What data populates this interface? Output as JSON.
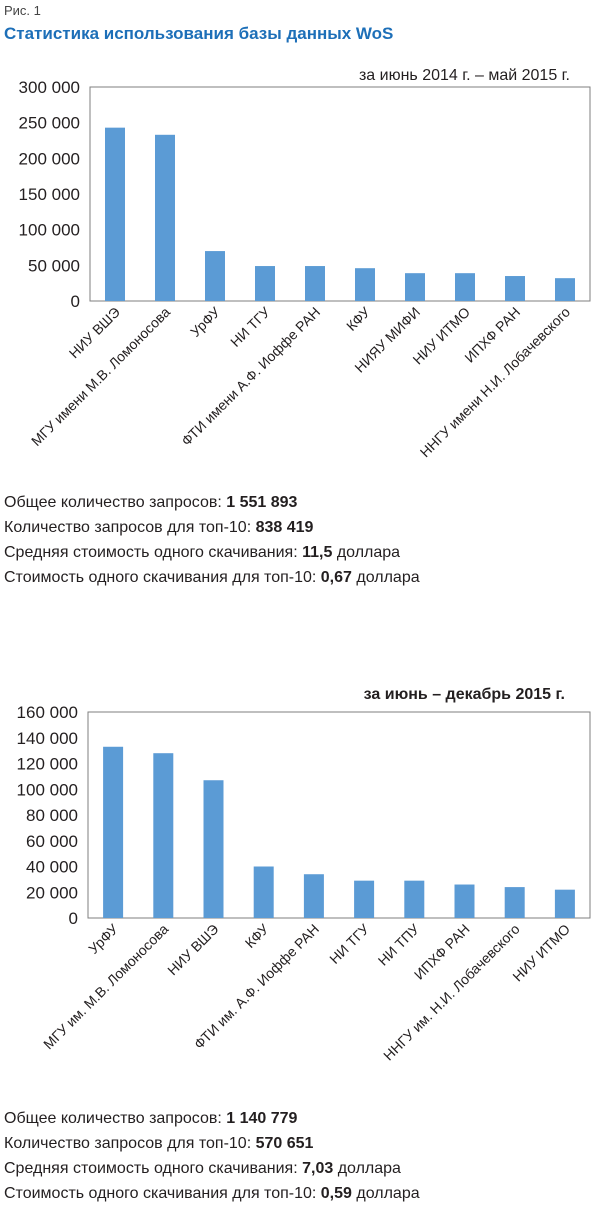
{
  "figure_label": "Рис. 1",
  "title": "Статистика использования базы данных WoS",
  "chart_data": [
    {
      "type": "bar",
      "subtitle": "за июнь 2014 г. – май 2015 г.",
      "ylim": [
        0,
        300000
      ],
      "yticks": [
        0,
        50000,
        100000,
        150000,
        200000,
        250000,
        300000
      ],
      "ytick_labels": [
        "0",
        "50 000",
        "100 000",
        "150 000",
        "200 000",
        "250 000",
        "300 000"
      ],
      "categories": [
        "НИУ ВШЭ",
        "МГУ имени М.В. Ломоносова",
        "УрФУ",
        "НИ ТГУ",
        "ФТИ имени А.Ф. Иоффе РАН",
        "КФУ",
        "НИЯУ МИФИ",
        "НИУ ИТМО",
        "ИПХФ РАН",
        "ННГУ имени Н.И. Лобачевского"
      ],
      "values": [
        243000,
        233000,
        70000,
        49000,
        49000,
        46000,
        39000,
        39000,
        35000,
        32000
      ],
      "color": "#5b9bd5",
      "grid": false
    },
    {
      "type": "bar",
      "subtitle": "за июнь – декабрь 2015 г.",
      "ylim": [
        0,
        160000
      ],
      "yticks": [
        0,
        20000,
        40000,
        60000,
        80000,
        100000,
        120000,
        140000,
        160000
      ],
      "ytick_labels": [
        "0",
        "20 000",
        "40 000",
        "60 000",
        "80 000",
        "100 000",
        "120 000",
        "140 000",
        "160 000"
      ],
      "categories": [
        "УрФУ",
        "МГУ им. М.В. Ломоносова",
        "НИУ ВШЭ",
        "КФУ",
        "ФТИ им. А.Ф. Иоффе РАН",
        "НИ ТГУ",
        "НИ ТПУ",
        "ИПХФ РАН",
        "ННГУ им. Н.И. Лобачевского",
        "НИУ ИТМО"
      ],
      "values": [
        133000,
        128000,
        107000,
        40000,
        34000,
        29000,
        29000,
        26000,
        24000,
        22000
      ],
      "color": "#5b9bd5",
      "grid": false
    }
  ],
  "stats": [
    [
      {
        "label": "Общее количество запросов: ",
        "value": "1 551 893",
        "suffix": ""
      },
      {
        "label": "Количество запросов для топ-10: ",
        "value": "838 419",
        "suffix": ""
      },
      {
        "label": "Средняя стоимость одного скачивания: ",
        "value": "11,5",
        "suffix": " доллара"
      },
      {
        "label": "Стоимость одного скачивания для топ-10: ",
        "value": "0,67",
        "suffix": " доллара"
      }
    ],
    [
      {
        "label": "Общее количество запросов: ",
        "value": "1 140 779",
        "suffix": ""
      },
      {
        "label": "Количество запросов для топ-10: ",
        "value": "570 651",
        "suffix": ""
      },
      {
        "label": "Средняя стоимость одного скачивания: ",
        "value": "7,03",
        "suffix": " доллара"
      },
      {
        "label": "Стоимость одного скачивания для топ-10: ",
        "value": "0,59",
        "suffix": " доллара"
      }
    ]
  ]
}
